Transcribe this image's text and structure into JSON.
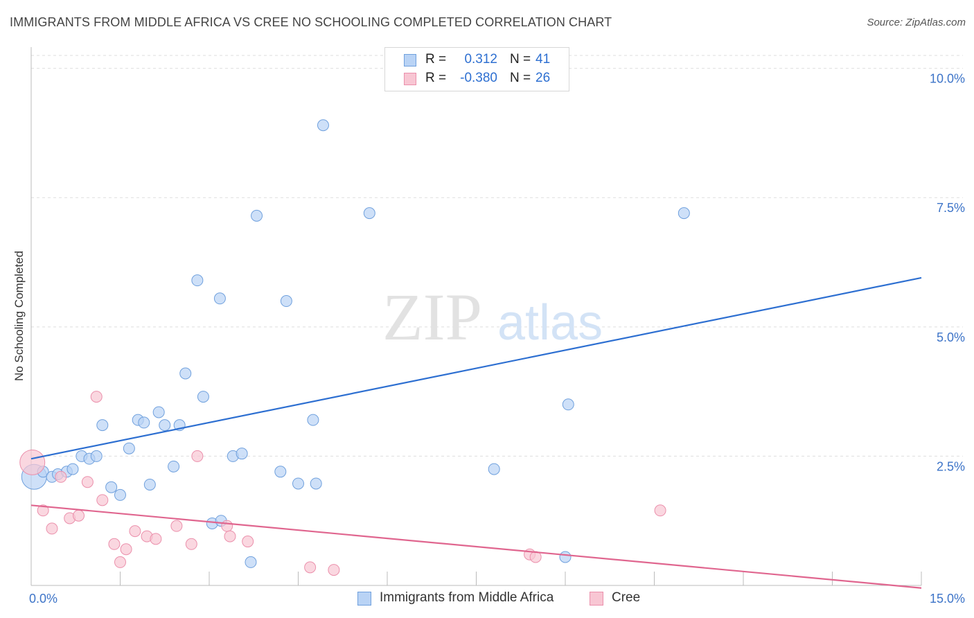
{
  "title": "IMMIGRANTS FROM MIDDLE AFRICA VS CREE NO SCHOOLING COMPLETED CORRELATION CHART",
  "source": "Source: ZipAtlas.com",
  "watermark": {
    "zip": "ZIP",
    "atlas": "atlas"
  },
  "colors": {
    "blue_fill": "#b9d3f5",
    "blue_stroke": "#6fa0dd",
    "blue_line": "#2d6fd1",
    "pink_fill": "#f8c6d3",
    "pink_stroke": "#eb8fab",
    "pink_line": "#e0668f",
    "tick_label": "#3d74c8",
    "grid": "#dddddd"
  },
  "stats": [
    {
      "r_label": "R =",
      "r_value": "0.312",
      "n_label": "N =",
      "n_value": "41",
      "color": "blue"
    },
    {
      "r_label": "R =",
      "r_value": "-0.380",
      "n_label": "N =",
      "n_value": "26",
      "color": "pink"
    }
  ],
  "legend": [
    {
      "label": "Immigrants from Middle Africa",
      "color": "blue"
    },
    {
      "label": "Cree",
      "color": "pink"
    }
  ],
  "chart_data": {
    "type": "scatter",
    "title": "IMMIGRANTS FROM MIDDLE AFRICA VS CREE NO SCHOOLING COMPLETED CORRELATION CHART",
    "xlabel": "",
    "ylabel": "No Schooling Completed",
    "xlim": [
      0,
      15
    ],
    "ylim": [
      0,
      10.25
    ],
    "x_tick_labels": [
      {
        "value": 0,
        "label": "0.0%"
      },
      {
        "value": 15,
        "label": "15.0%"
      }
    ],
    "y_tick_labels": [
      {
        "value": 2.5,
        "label": "2.5%"
      },
      {
        "value": 5.0,
        "label": "5.0%"
      },
      {
        "value": 7.5,
        "label": "7.5%"
      },
      {
        "value": 10.0,
        "label": "10.0%"
      }
    ],
    "grid": true,
    "legend_position": "bottom",
    "series": [
      {
        "name": "Immigrants from Middle Africa",
        "color": "blue",
        "points": [
          {
            "x": 0.05,
            "y": 2.1,
            "large": true
          },
          {
            "x": 0.2,
            "y": 2.2
          },
          {
            "x": 0.35,
            "y": 2.1
          },
          {
            "x": 0.45,
            "y": 2.15
          },
          {
            "x": 0.6,
            "y": 2.2
          },
          {
            "x": 0.7,
            "y": 2.25
          },
          {
            "x": 0.85,
            "y": 2.5
          },
          {
            "x": 0.98,
            "y": 2.45
          },
          {
            "x": 1.1,
            "y": 2.5
          },
          {
            "x": 1.2,
            "y": 3.1
          },
          {
            "x": 1.35,
            "y": 1.9
          },
          {
            "x": 1.5,
            "y": 1.75
          },
          {
            "x": 1.65,
            "y": 2.65
          },
          {
            "x": 1.8,
            "y": 3.2
          },
          {
            "x": 1.9,
            "y": 3.15
          },
          {
            "x": 2.0,
            "y": 1.95
          },
          {
            "x": 2.15,
            "y": 3.35
          },
          {
            "x": 2.25,
            "y": 3.1
          },
          {
            "x": 2.4,
            "y": 2.3
          },
          {
            "x": 2.5,
            "y": 3.1
          },
          {
            "x": 2.6,
            "y": 4.1
          },
          {
            "x": 2.8,
            "y": 5.9
          },
          {
            "x": 2.9,
            "y": 3.65
          },
          {
            "x": 3.05,
            "y": 1.2
          },
          {
            "x": 3.2,
            "y": 1.25
          },
          {
            "x": 3.18,
            "y": 5.55
          },
          {
            "x": 3.4,
            "y": 2.5
          },
          {
            "x": 3.55,
            "y": 2.55
          },
          {
            "x": 3.7,
            "y": 0.45
          },
          {
            "x": 3.8,
            "y": 7.15
          },
          {
            "x": 4.2,
            "y": 2.2
          },
          {
            "x": 4.3,
            "y": 5.5
          },
          {
            "x": 4.5,
            "y": 1.97
          },
          {
            "x": 4.75,
            "y": 3.2
          },
          {
            "x": 4.8,
            "y": 1.97
          },
          {
            "x": 4.92,
            "y": 8.9
          },
          {
            "x": 5.7,
            "y": 7.2
          },
          {
            "x": 7.8,
            "y": 2.25
          },
          {
            "x": 9.0,
            "y": 0.55
          },
          {
            "x": 9.05,
            "y": 3.5
          },
          {
            "x": 11.0,
            "y": 7.2
          }
        ]
      },
      {
        "name": "Cree",
        "color": "pink",
        "points": [
          {
            "x": 0.02,
            "y": 2.38,
            "large": true
          },
          {
            "x": 0.2,
            "y": 1.45
          },
          {
            "x": 0.35,
            "y": 1.1
          },
          {
            "x": 0.5,
            "y": 2.1
          },
          {
            "x": 0.65,
            "y": 1.3
          },
          {
            "x": 0.8,
            "y": 1.35
          },
          {
            "x": 0.95,
            "y": 2.0
          },
          {
            "x": 1.1,
            "y": 3.65
          },
          {
            "x": 1.2,
            "y": 1.65
          },
          {
            "x": 1.4,
            "y": 0.8
          },
          {
            "x": 1.5,
            "y": 0.45
          },
          {
            "x": 1.6,
            "y": 0.7
          },
          {
            "x": 1.75,
            "y": 1.05
          },
          {
            "x": 1.95,
            "y": 0.95
          },
          {
            "x": 2.1,
            "y": 0.9
          },
          {
            "x": 2.45,
            "y": 1.15
          },
          {
            "x": 2.7,
            "y": 0.8
          },
          {
            "x": 2.8,
            "y": 2.5
          },
          {
            "x": 3.3,
            "y": 1.15
          },
          {
            "x": 3.35,
            "y": 0.95
          },
          {
            "x": 3.65,
            "y": 0.85
          },
          {
            "x": 4.7,
            "y": 0.35
          },
          {
            "x": 5.1,
            "y": 0.3
          },
          {
            "x": 8.4,
            "y": 0.6
          },
          {
            "x": 8.5,
            "y": 0.55
          },
          {
            "x": 10.6,
            "y": 1.45
          }
        ]
      }
    ],
    "trend_lines": [
      {
        "series": "Immigrants from Middle Africa",
        "x": [
          0,
          15
        ],
        "y": [
          2.45,
          5.95
        ]
      },
      {
        "series": "Cree",
        "x": [
          0,
          15
        ],
        "y": [
          1.55,
          -0.05
        ]
      }
    ]
  }
}
